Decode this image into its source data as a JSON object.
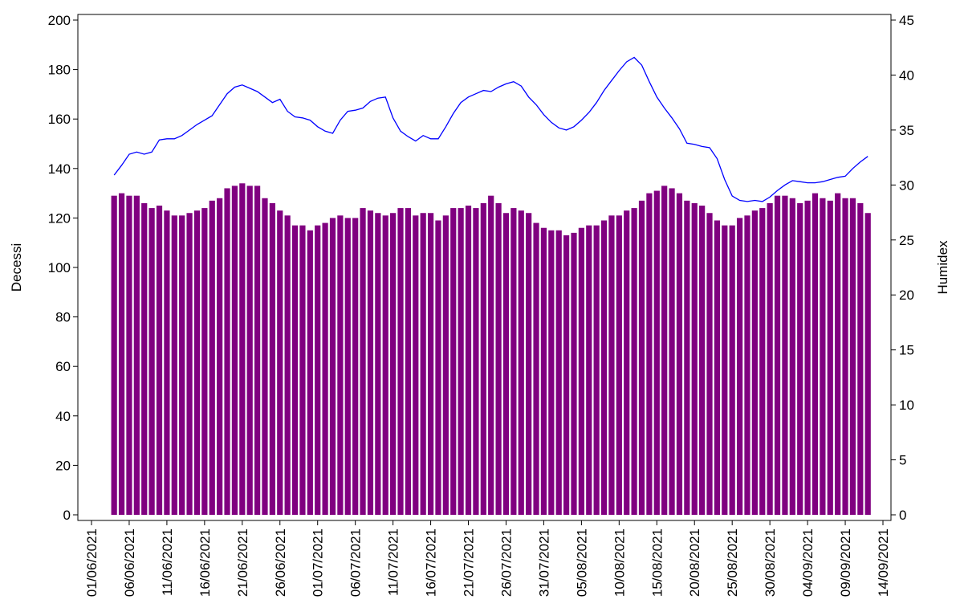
{
  "chart_data": {
    "type": "bar",
    "ylabel": "Decessi",
    "y2label": "Humidex",
    "xlim": [
      "01/06/2021",
      "14/09/2021"
    ],
    "xticks": [
      "01/06/2021",
      "06/06/2021",
      "11/06/2021",
      "16/06/2021",
      "21/06/2021",
      "26/06/2021",
      "01/07/2021",
      "06/07/2021",
      "11/07/2021",
      "16/07/2021",
      "21/07/2021",
      "26/07/2021",
      "31/07/2021",
      "05/08/2021",
      "10/08/2021",
      "15/08/2021",
      "20/08/2021",
      "25/08/2021",
      "30/08/2021",
      "04/09/2021",
      "09/09/2021",
      "14/09/2021"
    ],
    "ylim": [
      0,
      200
    ],
    "yticks": [
      0,
      20,
      40,
      60,
      80,
      100,
      120,
      140,
      160,
      180,
      200
    ],
    "y2lim": [
      0,
      45
    ],
    "y2ticks": [
      0,
      5,
      10,
      15,
      20,
      25,
      30,
      35,
      40,
      45
    ],
    "x": [
      "04/06/2021",
      "05/06/2021",
      "06/06/2021",
      "07/06/2021",
      "08/06/2021",
      "09/06/2021",
      "10/06/2021",
      "11/06/2021",
      "12/06/2021",
      "13/06/2021",
      "14/06/2021",
      "15/06/2021",
      "16/06/2021",
      "17/06/2021",
      "18/06/2021",
      "19/06/2021",
      "20/06/2021",
      "21/06/2021",
      "22/06/2021",
      "23/06/2021",
      "24/06/2021",
      "25/06/2021",
      "26/06/2021",
      "27/06/2021",
      "28/06/2021",
      "29/06/2021",
      "30/06/2021",
      "01/07/2021",
      "02/07/2021",
      "03/07/2021",
      "04/07/2021",
      "05/07/2021",
      "06/07/2021",
      "07/07/2021",
      "08/07/2021",
      "09/07/2021",
      "10/07/2021",
      "11/07/2021",
      "12/07/2021",
      "13/07/2021",
      "14/07/2021",
      "15/07/2021",
      "16/07/2021",
      "17/07/2021",
      "18/07/2021",
      "19/07/2021",
      "20/07/2021",
      "21/07/2021",
      "22/07/2021",
      "23/07/2021",
      "24/07/2021",
      "25/07/2021",
      "26/07/2021",
      "27/07/2021",
      "28/07/2021",
      "29/07/2021",
      "30/07/2021",
      "31/07/2021",
      "01/08/2021",
      "02/08/2021",
      "03/08/2021",
      "04/08/2021",
      "05/08/2021",
      "06/08/2021",
      "07/08/2021",
      "08/08/2021",
      "09/08/2021",
      "10/08/2021",
      "11/08/2021",
      "12/08/2021",
      "13/08/2021",
      "14/08/2021",
      "15/08/2021",
      "16/08/2021",
      "17/08/2021",
      "18/08/2021",
      "19/08/2021",
      "20/08/2021",
      "21/08/2021",
      "22/08/2021",
      "23/08/2021",
      "24/08/2021",
      "25/08/2021",
      "26/08/2021",
      "27/08/2021",
      "28/08/2021",
      "29/08/2021",
      "30/08/2021",
      "31/08/2021",
      "01/09/2021",
      "02/09/2021",
      "03/09/2021",
      "04/09/2021",
      "05/09/2021",
      "06/09/2021",
      "07/09/2021",
      "08/09/2021",
      "09/09/2021",
      "10/09/2021",
      "11/09/2021",
      "12/09/2021"
    ],
    "series": [
      {
        "type": "bar",
        "color": "#800080",
        "values": [
          129,
          130,
          129,
          129,
          126,
          124,
          125,
          123,
          121,
          121,
          122,
          123,
          124,
          127,
          128,
          132,
          133,
          134,
          133,
          133,
          128,
          126,
          123,
          121,
          117,
          117,
          115,
          117,
          118,
          120,
          121,
          120,
          120,
          124,
          123,
          122,
          121,
          122,
          124,
          124,
          121,
          122,
          122,
          119,
          121,
          124,
          124,
          125,
          124,
          126,
          129,
          126,
          122,
          124,
          123,
          122,
          118,
          116,
          115,
          115,
          113,
          114,
          116,
          117,
          117,
          119,
          121,
          121,
          123,
          124,
          127,
          130,
          131,
          133,
          132,
          130,
          127,
          126,
          125,
          122,
          119,
          117,
          117,
          120,
          121,
          123,
          124,
          126,
          129,
          129,
          128,
          126,
          127,
          130,
          128,
          127,
          130,
          128,
          128,
          126,
          122
        ]
      },
      {
        "type": "line",
        "axis": "y2",
        "color": "#0000ff",
        "values": [
          30.9,
          31.8,
          32.8,
          33.0,
          32.8,
          33.0,
          34.1,
          34.2,
          34.2,
          34.5,
          35.0,
          35.5,
          35.9,
          36.3,
          37.3,
          38.3,
          38.9,
          39.1,
          38.8,
          38.5,
          38.0,
          37.5,
          37.8,
          36.7,
          36.2,
          36.1,
          35.9,
          35.3,
          34.9,
          34.7,
          35.9,
          36.7,
          36.8,
          37.0,
          37.6,
          37.9,
          38.0,
          36.1,
          34.9,
          34.4,
          34.0,
          34.5,
          34.2,
          34.2,
          35.3,
          36.5,
          37.5,
          38.0,
          38.3,
          38.6,
          38.5,
          38.9,
          39.2,
          39.4,
          39.0,
          38.0,
          37.3,
          36.4,
          35.7,
          35.2,
          35.0,
          35.3,
          35.9,
          36.6,
          37.5,
          38.6,
          39.5,
          40.4,
          41.2,
          41.6,
          40.9,
          39.4,
          38.0,
          37.0,
          36.1,
          35.1,
          33.8,
          33.7,
          33.5,
          33.4,
          32.4,
          30.5,
          29.0,
          28.6,
          28.5,
          28.6,
          28.5,
          28.9,
          29.5,
          30.0,
          30.4,
          30.3,
          30.2,
          30.2,
          30.3,
          30.5,
          30.7,
          30.8,
          31.5,
          32.1,
          32.6
        ]
      }
    ]
  }
}
